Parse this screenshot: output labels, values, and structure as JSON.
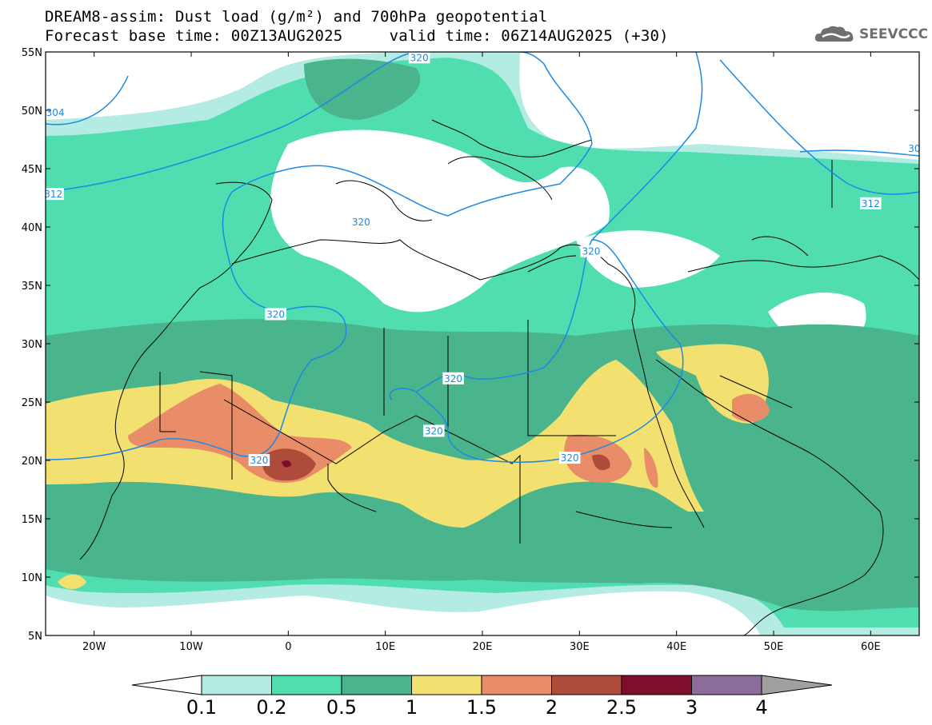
{
  "header": {
    "title_line1": "DREAM8-assim: Dust load (g/m²) and 700hPa geopotential",
    "title_line2": "Forecast base time: 00Z13AUG2025     valid time: 06Z14AUG2025 (+30)",
    "brand": "SEEVCCC",
    "brand_icon": "cloud-logo-icon"
  },
  "axes": {
    "lat_labels": [
      "55N",
      "50N",
      "45N",
      "40N",
      "35N",
      "30N",
      "25N",
      "20N",
      "15N",
      "10N",
      "5N"
    ],
    "lon_labels": [
      "20W",
      "10W",
      "0",
      "10E",
      "20E",
      "30E",
      "40E",
      "50E",
      "60E"
    ],
    "lon_range": [
      -25,
      65
    ],
    "lat_range": [
      5,
      55
    ]
  },
  "contour_labels": [
    {
      "text": "304",
      "lon": -24.0,
      "lat": 49.8
    },
    {
      "text": "312",
      "lon": -24.2,
      "lat": 42.8
    },
    {
      "text": "320",
      "lon": 13.5,
      "lat": 54.5
    },
    {
      "text": "320",
      "lon": 7.5,
      "lat": 40.4
    },
    {
      "text": "320",
      "lon": 31.2,
      "lat": 37.9
    },
    {
      "text": "320",
      "lon": -1.3,
      "lat": 32.5
    },
    {
      "text": "320",
      "lon": 17.0,
      "lat": 27.0
    },
    {
      "text": "320",
      "lon": 15.0,
      "lat": 22.5
    },
    {
      "text": "320",
      "lon": -3.0,
      "lat": 20.0
    },
    {
      "text": "320",
      "lon": 29.0,
      "lat": 20.2
    },
    {
      "text": "312",
      "lon": 60.0,
      "lat": 42.0
    },
    {
      "text": "30",
      "lon": 64.5,
      "lat": 46.7
    }
  ],
  "legend": {
    "colors": [
      "#b4ece4",
      "#50deb0",
      "#4ab48c",
      "#f2e070",
      "#e98c68",
      "#ae4c3c",
      "#7e0e2c",
      "#8c6c9c"
    ],
    "under_color": "#ffffff",
    "over_color": "#a0a0a0",
    "labels": [
      "0.1",
      "0.2",
      "0.5",
      "1",
      "1.5",
      "2",
      "2.5",
      "3",
      "4"
    ]
  }
}
